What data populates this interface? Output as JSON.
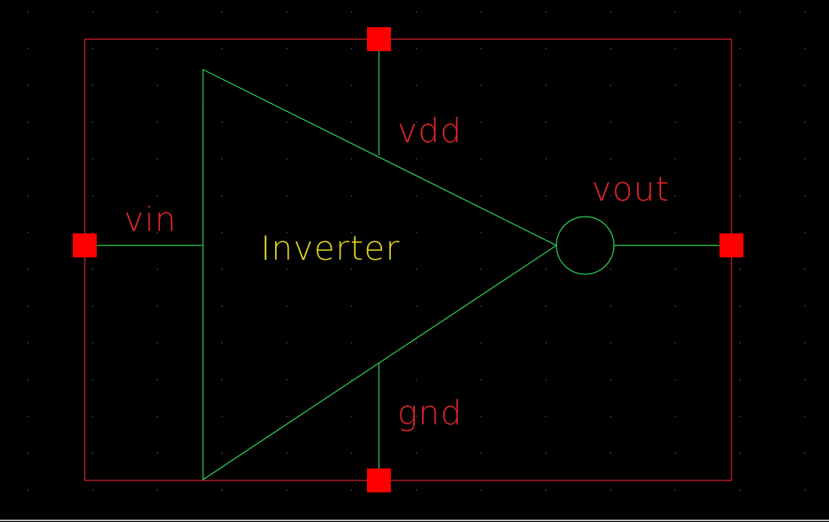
{
  "symbol": {
    "name": "Inverter",
    "pins": {
      "vin": "vin",
      "vout": "vout",
      "vdd": "vdd",
      "gnd": "gnd"
    }
  },
  "colors": {
    "background": "#000000",
    "boundary": "#e0262b",
    "pin": "#ff0000",
    "wire": "#2ed65a",
    "pin_label": "#e0262b",
    "symbol_label": "#e0d020",
    "grid_dot": "#4a4a4a"
  }
}
